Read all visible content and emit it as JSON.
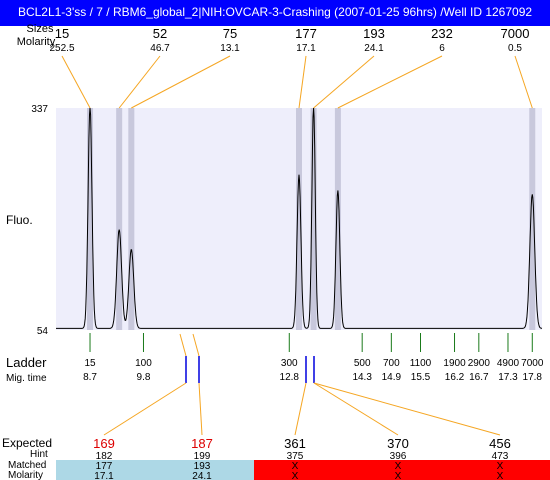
{
  "window": {
    "title": "BCL2L1-3'ss / 7 / RBM6_global_2|NIH:OVCAR-3-Crashing (2007-01-25 96hrs) /Well ID 1267092"
  },
  "header": {
    "sizes_label": "Sizes",
    "molarity_label": "Molarity"
  },
  "peaks": [
    {
      "size": "15",
      "molarity": "252.5"
    },
    {
      "size": "52",
      "molarity": "46.7"
    },
    {
      "size": "75",
      "molarity": "13.1"
    },
    {
      "size": "177",
      "molarity": "17.1"
    },
    {
      "size": "193",
      "molarity": "24.1"
    },
    {
      "size": "232",
      "molarity": "6"
    },
    {
      "size": "7000",
      "molarity": "0.5"
    }
  ],
  "axis": {
    "y_label": "Fluo.",
    "y_max": "337",
    "y_min": "54"
  },
  "ladder": {
    "label": "Ladder",
    "mig_label": "Mig. time",
    "marks": [
      {
        "size": "15",
        "time": "8.7"
      },
      {
        "size": "100",
        "time": "9.8"
      },
      {
        "size": "300",
        "time": "12.8"
      },
      {
        "size": "500",
        "time": "14.3"
      },
      {
        "size": "700",
        "time": "14.9"
      },
      {
        "size": "1100",
        "time": "15.5"
      },
      {
        "size": "1900",
        "time": "16.2"
      },
      {
        "size": "2900",
        "time": "16.7"
      },
      {
        "size": "4900",
        "time": "17.3"
      },
      {
        "size": "7000",
        "time": "17.8"
      }
    ]
  },
  "expected": {
    "labels": {
      "expected": "Expected",
      "hint": "Hint",
      "matched": "Matched",
      "molarity": "Molarity"
    },
    "items": [
      {
        "expected": "169",
        "hint": "182",
        "matched": "177",
        "molarity": "17.1",
        "status": "matched"
      },
      {
        "expected": "187",
        "hint": "199",
        "matched": "193",
        "molarity": "24.1",
        "status": "matched"
      },
      {
        "expected": "361",
        "hint": "375",
        "matched": "X",
        "molarity": "X",
        "status": "missing"
      },
      {
        "expected": "370",
        "hint": "396",
        "matched": "X",
        "molarity": "X",
        "status": "missing"
      },
      {
        "expected": "456",
        "hint": "473",
        "matched": "X",
        "molarity": "X",
        "status": "missing"
      }
    ]
  },
  "colors": {
    "title_bg": "#0000ff",
    "plot_bg": "#eeeefb",
    "peak_band": "#c8c8dc",
    "connector": "#f5a623",
    "ladder_tick": "#1a7a1a",
    "expected_tick": "#0000dd",
    "matched_text": "#dd0000",
    "matched_bg": "#add8e6",
    "missing_bg": "#ff0000",
    "trace": "#000000"
  },
  "chart_data": {
    "type": "line",
    "title": "BCL2L1-3'ss / 7 / RBM6_global_2|NIH:OVCAR-3-Crashing (2007-01-25 96hrs) /Well ID 1267092",
    "xlabel": "Mig. time",
    "ylabel": "Fluo.",
    "ylim": [
      54,
      337
    ],
    "xlim": [
      8.0,
      18.0
    ],
    "peak_times": [
      8.7,
      9.3,
      9.55,
      13.0,
      13.3,
      13.8,
      17.8
    ],
    "peak_heights": [
      337,
      180,
      155,
      250,
      337,
      230,
      225
    ],
    "peak_widths": [
      0.04,
      0.05,
      0.05,
      0.04,
      0.035,
      0.04,
      0.05
    ]
  }
}
